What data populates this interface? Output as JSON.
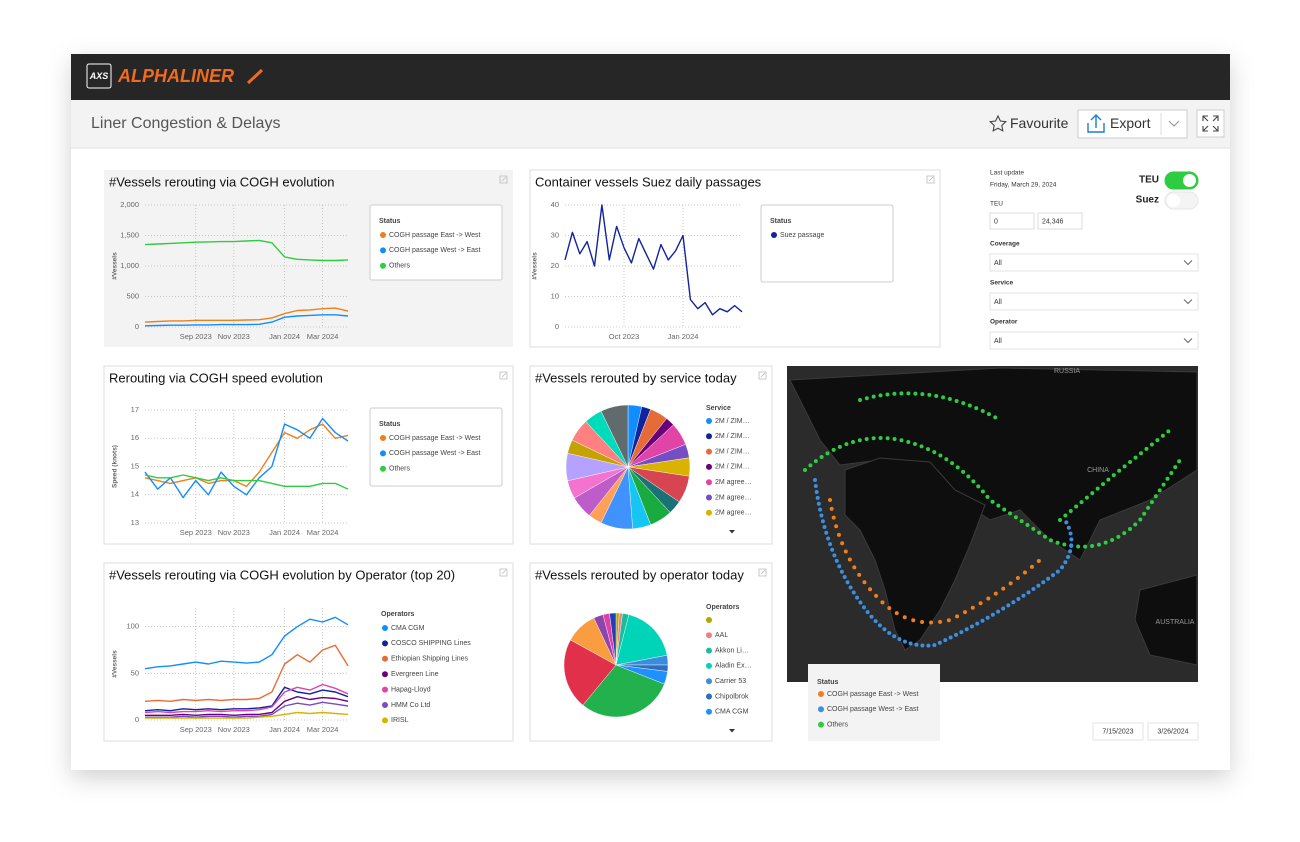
{
  "header": {
    "logo": "AXS",
    "brand": "ALPHALINER"
  },
  "toolbar": {
    "title": "Liner Congestion & Delays",
    "favourite": "Favourite",
    "export": "Export"
  },
  "filters": {
    "last_update_label": "Last update",
    "last_update": "Friday, March 29, 2024",
    "teu_label": "TEU",
    "teu_range": [
      "0",
      "24,346"
    ],
    "toggles": [
      {
        "label": "TEU",
        "on": true
      },
      {
        "label": "Suez",
        "on": false
      }
    ],
    "dropdowns": [
      {
        "label": "Coverage",
        "value": "All"
      },
      {
        "label": "Service",
        "value": "All"
      },
      {
        "label": "Operator",
        "value": "All"
      }
    ],
    "date_range": [
      "7/15/2023",
      "3/26/2024"
    ]
  },
  "map": {
    "labels": [
      "RUSSIA",
      "CHINA",
      "AUSTRALIA"
    ],
    "legend_title": "Status",
    "legend": [
      {
        "name": "COGH passage East -> West",
        "color": "#f07f1a"
      },
      {
        "name": "COGH passage West -> East",
        "color": "#3c8fe0"
      },
      {
        "name": "Others",
        "color": "#2ecc40"
      }
    ]
  },
  "chart_data": [
    {
      "type": "line",
      "title": "#Vessels rerouting via COGH evolution",
      "y_label": "#Vessels",
      "legend_title": "Status",
      "grid": true,
      "categories": [
        null,
        null,
        null,
        null,
        "Sep 2023",
        null,
        null,
        "Nov 2023",
        null,
        null,
        null,
        "Jan 2024",
        null,
        null,
        "Mar 2024",
        null,
        null
      ],
      "ylim": [
        0,
        2000
      ],
      "yticks": [
        0,
        500,
        {
          "value": 1000,
          "label": "1,000"
        },
        {
          "value": 1500,
          "label": "1,500"
        },
        {
          "value": 2000,
          "label": "2,000"
        }
      ],
      "series": [
        {
          "name": "COGH passage East -> West",
          "color": "#f07f1a",
          "values": [
            80,
            90,
            100,
            100,
            110,
            110,
            110,
            110,
            115,
            120,
            150,
            220,
            270,
            280,
            300,
            310,
            260
          ]
        },
        {
          "name": "COGH passage West -> East",
          "color": "#118dff",
          "values": [
            20,
            25,
            30,
            30,
            35,
            35,
            40,
            40,
            40,
            45,
            80,
            160,
            180,
            190,
            200,
            200,
            180
          ]
        },
        {
          "name": "Others",
          "color": "#2ecc40",
          "values": [
            1350,
            1360,
            1370,
            1380,
            1390,
            1395,
            1400,
            1400,
            1410,
            1420,
            1380,
            1150,
            1110,
            1100,
            1090,
            1090,
            1100
          ]
        }
      ]
    },
    {
      "type": "line",
      "title": "Container vessels Suez daily passages",
      "y_label": "#Vessels",
      "legend_title": "Status",
      "grid": true,
      "categories": [
        null,
        null,
        null,
        null,
        null,
        null,
        null,
        null,
        "Oct 2023",
        null,
        null,
        null,
        null,
        null,
        null,
        null,
        "Jan 2024",
        null,
        null,
        null,
        null,
        null,
        null,
        null,
        null
      ],
      "ylim": [
        0,
        40
      ],
      "yticks": [
        0,
        10,
        20,
        30,
        40
      ],
      "series": [
        {
          "name": "Suez passage",
          "color": "#12239e",
          "values": [
            22,
            31,
            24,
            28,
            20,
            40,
            22,
            33,
            26,
            21,
            29,
            24,
            19,
            27,
            22,
            25,
            30,
            9,
            6,
            8,
            4,
            6,
            5,
            7,
            5
          ]
        }
      ]
    },
    {
      "type": "line",
      "title": "Rerouting via COGH speed evolution",
      "y_label": "Speed (knots)",
      "legend_title": "Status",
      "grid": true,
      "categories": [
        null,
        null,
        null,
        null,
        "Sep 2023",
        null,
        null,
        "Nov 2023",
        null,
        null,
        null,
        "Jan 2024",
        null,
        null,
        "Mar 2024",
        null,
        null
      ],
      "ylim": [
        13,
        17
      ],
      "yticks": [
        13,
        14,
        15,
        16,
        17
      ],
      "series": [
        {
          "name": "COGH passage East -> West",
          "color": "#f07f1a",
          "values": [
            14.6,
            14.5,
            14.4,
            14.5,
            14.6,
            14.4,
            14.5,
            14.5,
            14.3,
            14.8,
            15.5,
            16.2,
            16.0,
            16.3,
            16.5,
            16.0,
            16.1
          ]
        },
        {
          "name": "COGH passage West -> East",
          "color": "#118dff",
          "values": [
            14.8,
            14.2,
            14.6,
            13.9,
            14.5,
            14.0,
            14.8,
            14.3,
            14.0,
            14.6,
            15.0,
            16.5,
            16.3,
            16.0,
            16.7,
            16.2,
            15.9
          ]
        },
        {
          "name": "Others",
          "color": "#2ecc40",
          "values": [
            14.7,
            14.6,
            14.6,
            14.7,
            14.6,
            14.5,
            14.6,
            14.5,
            14.5,
            14.5,
            14.4,
            14.3,
            14.3,
            14.3,
            14.4,
            14.4,
            14.2
          ]
        }
      ]
    },
    {
      "type": "line",
      "title": "#Vessels rerouting via COGH evolution by Operator (top 20)",
      "y_label": "#Vessels",
      "legend_title": "Operators",
      "grid": true,
      "categories": [
        null,
        null,
        null,
        null,
        "Sep 2023",
        null,
        null,
        "Nov 2023",
        null,
        null,
        null,
        "Jan 2024",
        null,
        null,
        "Mar 2024",
        null,
        null
      ],
      "ylim": [
        0,
        120
      ],
      "yticks": [
        0,
        50,
        100
      ],
      "series": [
        {
          "name": "CMA CGM",
          "color": "#118dff",
          "values": [
            55,
            57,
            58,
            60,
            62,
            60,
            63,
            62,
            61,
            62,
            70,
            90,
            100,
            108,
            105,
            110,
            102
          ]
        },
        {
          "name": "COSCO SHIPPING Lines",
          "color": "#12239e",
          "values": [
            10,
            11,
            10,
            12,
            11,
            12,
            11,
            12,
            12,
            13,
            15,
            35,
            30,
            28,
            32,
            30,
            25
          ]
        },
        {
          "name": "Ethiopian Shipping Lines",
          "color": "#e66c37",
          "values": [
            20,
            21,
            20,
            22,
            21,
            22,
            21,
            22,
            22,
            23,
            30,
            60,
            70,
            62,
            75,
            80,
            58
          ]
        },
        {
          "name": "Evergreen Line",
          "color": "#6b007b",
          "values": [
            5,
            5,
            5,
            6,
            5,
            6,
            6,
            5,
            6,
            6,
            8,
            20,
            25,
            22,
            24,
            23,
            20
          ]
        },
        {
          "name": "Hapag-Lloyd",
          "color": "#e044a7",
          "values": [
            8,
            9,
            8,
            9,
            9,
            10,
            9,
            10,
            10,
            11,
            14,
            30,
            35,
            32,
            38,
            34,
            28
          ]
        },
        {
          "name": "HMM Co Ltd",
          "color": "#744ec2",
          "values": [
            3,
            3,
            3,
            4,
            3,
            4,
            4,
            3,
            4,
            4,
            6,
            15,
            18,
            16,
            19,
            17,
            15
          ]
        },
        {
          "name": "IRISL",
          "color": "#d9b300",
          "values": [
            2,
            2,
            2,
            2,
            2,
            2,
            2,
            2,
            2,
            3,
            4,
            6,
            8,
            7,
            8,
            7,
            6
          ]
        }
      ]
    },
    {
      "type": "pie",
      "title": "#Vessels rerouted by service today",
      "legend_title": "Service",
      "categories": [
        "2M / ZIM…",
        "2M / ZIM…",
        "2M / ZIM…",
        "2M / ZIM…",
        "2M agree…",
        "2M agree…",
        "2M agree…",
        null,
        null,
        null,
        null,
        null,
        null,
        null,
        null,
        null,
        null,
        null,
        null,
        null
      ],
      "values": [
        3,
        2,
        4,
        2,
        5,
        3,
        4,
        6,
        3,
        5,
        4,
        7,
        3,
        5,
        4,
        6,
        3,
        5,
        4,
        6
      ],
      "colors": [
        "#118dff",
        "#12239e",
        "#e66c37",
        "#6b007b",
        "#e044a7",
        "#744ec2",
        "#d9b300",
        "#d64550",
        "#197278",
        "#1aab40",
        "#15c6f4",
        "#4092ff",
        "#ffa058",
        "#be5dc9",
        "#f472d0",
        "#b5a1ff",
        "#c4a200",
        "#ff8080",
        "#00dbbc",
        "#5f6b6d"
      ]
    },
    {
      "type": "pie",
      "title": "#Vessels rerouted by operator today",
      "legend_title": "Operators",
      "categories": [
        null,
        "AAL",
        "Akkon Li…",
        "Aladin Ex…",
        "Carrier 53",
        "Chipolbrok",
        "CMA CGM",
        null,
        null,
        null,
        null,
        null,
        null
      ],
      "values": [
        1,
        1,
        2,
        18,
        3,
        2,
        4,
        30,
        22,
        10,
        3,
        2,
        2
      ],
      "colors": [
        "#b3a600",
        "#f08080",
        "#1abc9c",
        "#00d4b8",
        "#3a8dde",
        "#2f6fbf",
        "#1e90ff",
        "#22b14c",
        "#e0304a",
        "#f99d40",
        "#8e44ad",
        "#e040a0",
        "#1f3fbf"
      ]
    }
  ]
}
